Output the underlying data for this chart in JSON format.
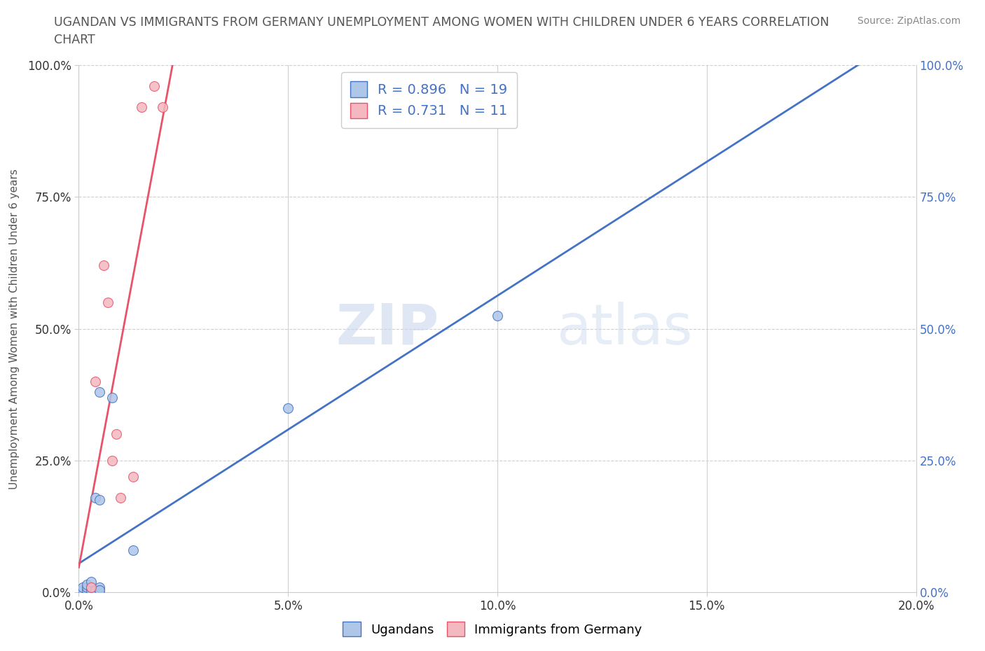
{
  "title_line1": "UGANDAN VS IMMIGRANTS FROM GERMANY UNEMPLOYMENT AMONG WOMEN WITH CHILDREN UNDER 6 YEARS CORRELATION",
  "title_line2": "CHART",
  "source": "Source: ZipAtlas.com",
  "ylabel": "Unemployment Among Women with Children Under 6 years",
  "xlim": [
    0.0,
    0.2
  ],
  "ylim": [
    0.0,
    1.0
  ],
  "xtick_labels": [
    "0.0%",
    "5.0%",
    "10.0%",
    "15.0%",
    "20.0%"
  ],
  "xtick_values": [
    0.0,
    0.05,
    0.1,
    0.15,
    0.2
  ],
  "ytick_labels": [
    "0.0%",
    "25.0%",
    "50.0%",
    "75.0%",
    "100.0%"
  ],
  "ytick_values": [
    0.0,
    0.25,
    0.5,
    0.75,
    1.0
  ],
  "ugandan_x": [
    0.001,
    0.001,
    0.002,
    0.002,
    0.002,
    0.003,
    0.003,
    0.003,
    0.004,
    0.004,
    0.005,
    0.005,
    0.005,
    0.005,
    0.005,
    0.008,
    0.013,
    0.05,
    0.1
  ],
  "ugandan_y": [
    0.005,
    0.01,
    0.005,
    0.01,
    0.015,
    0.005,
    0.01,
    0.02,
    0.005,
    0.18,
    0.005,
    0.01,
    0.175,
    0.38,
    0.005,
    0.37,
    0.08,
    0.35,
    0.525
  ],
  "germany_x": [
    0.003,
    0.004,
    0.006,
    0.007,
    0.008,
    0.009,
    0.01,
    0.013,
    0.015,
    0.018,
    0.02
  ],
  "germany_y": [
    0.01,
    0.4,
    0.62,
    0.55,
    0.25,
    0.3,
    0.18,
    0.22,
    0.92,
    0.96,
    0.92
  ],
  "ugandan_color": "#aec6e8",
  "ugandan_line_color": "#4472c4",
  "germany_color": "#f4b8c1",
  "germany_line_color": "#e8536a",
  "R_ugandan": 0.896,
  "N_ugandan": 19,
  "R_germany": 0.731,
  "N_germany": 11,
  "watermark_zip": "ZIP",
  "watermark_atlas": "atlas",
  "background_color": "#ffffff",
  "grid_color": "#d0d0d0",
  "right_tick_color": "#4472c4",
  "left_tick_color": "#333333",
  "title_color": "#555555",
  "source_color": "#888888"
}
